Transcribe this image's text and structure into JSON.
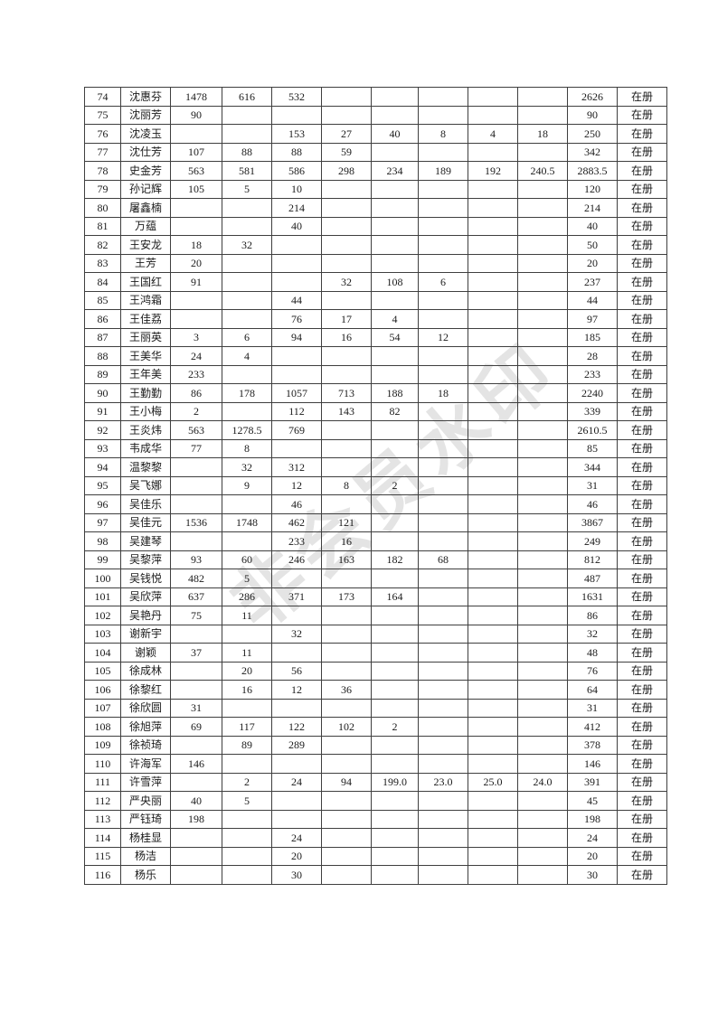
{
  "page": {
    "background_color": "#ffffff",
    "border_color": "#3f3f3f",
    "text_color": "#1b1b1b"
  },
  "watermark": {
    "text": "非会员水印",
    "color": "#e4e4e4",
    "rotation_deg": -40
  },
  "table": {
    "rows": [
      {
        "no": "74",
        "name": "沈惠芬",
        "values": [
          "1478",
          "616",
          "532",
          "",
          "",
          "",
          "",
          ""
        ],
        "total": "2626",
        "status": "在册"
      },
      {
        "no": "75",
        "name": "沈丽芳",
        "values": [
          "90",
          "",
          "",
          "",
          "",
          "",
          "",
          ""
        ],
        "total": "90",
        "status": "在册"
      },
      {
        "no": "76",
        "name": "沈凌玉",
        "values": [
          "",
          "",
          "153",
          "27",
          "40",
          "8",
          "4",
          "18"
        ],
        "total": "250",
        "status": "在册"
      },
      {
        "no": "77",
        "name": "沈仕芳",
        "values": [
          "107",
          "88",
          "88",
          "59",
          "",
          "",
          "",
          ""
        ],
        "total": "342",
        "status": "在册"
      },
      {
        "no": "78",
        "name": "史金芳",
        "values": [
          "563",
          "581",
          "586",
          "298",
          "234",
          "189",
          "192",
          "240.5"
        ],
        "total": "2883.5",
        "status": "在册"
      },
      {
        "no": "79",
        "name": "孙记辉",
        "values": [
          "105",
          "5",
          "10",
          "",
          "",
          "",
          "",
          ""
        ],
        "total": "120",
        "status": "在册"
      },
      {
        "no": "80",
        "name": "屠鑫楠",
        "values": [
          "",
          "",
          "214",
          "",
          "",
          "",
          "",
          ""
        ],
        "total": "214",
        "status": "在册"
      },
      {
        "no": "81",
        "name": "万蕴",
        "values": [
          "",
          "",
          "40",
          "",
          "",
          "",
          "",
          ""
        ],
        "total": "40",
        "status": "在册"
      },
      {
        "no": "82",
        "name": "王安龙",
        "values": [
          "18",
          "32",
          "",
          "",
          "",
          "",
          "",
          ""
        ],
        "total": "50",
        "status": "在册"
      },
      {
        "no": "83",
        "name": "王芳",
        "values": [
          "20",
          "",
          "",
          "",
          "",
          "",
          "",
          ""
        ],
        "total": "20",
        "status": "在册"
      },
      {
        "no": "84",
        "name": "王国红",
        "values": [
          "91",
          "",
          "",
          "32",
          "108",
          "6",
          "",
          ""
        ],
        "total": "237",
        "status": "在册"
      },
      {
        "no": "85",
        "name": "王鸿霜",
        "values": [
          "",
          "",
          "44",
          "",
          "",
          "",
          "",
          ""
        ],
        "total": "44",
        "status": "在册"
      },
      {
        "no": "86",
        "name": "王佳荔",
        "values": [
          "",
          "",
          "76",
          "17",
          "4",
          "",
          "",
          ""
        ],
        "total": "97",
        "status": "在册"
      },
      {
        "no": "87",
        "name": "王丽英",
        "values": [
          "3",
          "6",
          "94",
          "16",
          "54",
          "12",
          "",
          ""
        ],
        "total": "185",
        "status": "在册"
      },
      {
        "no": "88",
        "name": "王美华",
        "values": [
          "24",
          "4",
          "",
          "",
          "",
          "",
          "",
          ""
        ],
        "total": "28",
        "status": "在册"
      },
      {
        "no": "89",
        "name": "王年美",
        "values": [
          "233",
          "",
          "",
          "",
          "",
          "",
          "",
          ""
        ],
        "total": "233",
        "status": "在册"
      },
      {
        "no": "90",
        "name": "王勤勤",
        "values": [
          "86",
          "178",
          "1057",
          "713",
          "188",
          "18",
          "",
          ""
        ],
        "total": "2240",
        "status": "在册"
      },
      {
        "no": "91",
        "name": "王小梅",
        "values": [
          "2",
          "",
          "112",
          "143",
          "82",
          "",
          "",
          ""
        ],
        "total": "339",
        "status": "在册"
      },
      {
        "no": "92",
        "name": "王炎炜",
        "values": [
          "563",
          "1278.5",
          "769",
          "",
          "",
          "",
          "",
          ""
        ],
        "total": "2610.5",
        "status": "在册"
      },
      {
        "no": "93",
        "name": "韦成华",
        "values": [
          "77",
          "8",
          "",
          "",
          "",
          "",
          "",
          ""
        ],
        "total": "85",
        "status": "在册"
      },
      {
        "no": "94",
        "name": "温黎黎",
        "values": [
          "",
          "32",
          "312",
          "",
          "",
          "",
          "",
          ""
        ],
        "total": "344",
        "status": "在册"
      },
      {
        "no": "95",
        "name": "吴飞娜",
        "values": [
          "",
          "9",
          "12",
          "8",
          "2",
          "",
          "",
          ""
        ],
        "total": "31",
        "status": "在册"
      },
      {
        "no": "96",
        "name": "吴佳乐",
        "values": [
          "",
          "",
          "46",
          "",
          "",
          "",
          "",
          ""
        ],
        "total": "46",
        "status": "在册"
      },
      {
        "no": "97",
        "name": "吴佳元",
        "values": [
          "1536",
          "1748",
          "462",
          "121",
          "",
          "",
          "",
          ""
        ],
        "total": "3867",
        "status": "在册"
      },
      {
        "no": "98",
        "name": "吴建琴",
        "values": [
          "",
          "",
          "233",
          "16",
          "",
          "",
          "",
          ""
        ],
        "total": "249",
        "status": "在册"
      },
      {
        "no": "99",
        "name": "吴黎萍",
        "values": [
          "93",
          "60",
          "246",
          "163",
          "182",
          "68",
          "",
          ""
        ],
        "total": "812",
        "status": "在册"
      },
      {
        "no": "100",
        "name": "吴钱悦",
        "values": [
          "482",
          "5",
          "",
          "",
          "",
          "",
          "",
          ""
        ],
        "total": "487",
        "status": "在册"
      },
      {
        "no": "101",
        "name": "吴欣萍",
        "values": [
          "637",
          "286",
          "371",
          "173",
          "164",
          "",
          "",
          ""
        ],
        "total": "1631",
        "status": "在册"
      },
      {
        "no": "102",
        "name": "吴艳丹",
        "values": [
          "75",
          "11",
          "",
          "",
          "",
          "",
          "",
          ""
        ],
        "total": "86",
        "status": "在册"
      },
      {
        "no": "103",
        "name": "谢新宇",
        "values": [
          "",
          "",
          "32",
          "",
          "",
          "",
          "",
          ""
        ],
        "total": "32",
        "status": "在册"
      },
      {
        "no": "104",
        "name": "谢颖",
        "values": [
          "37",
          "11",
          "",
          "",
          "",
          "",
          "",
          ""
        ],
        "total": "48",
        "status": "在册"
      },
      {
        "no": "105",
        "name": "徐成林",
        "values": [
          "",
          "20",
          "56",
          "",
          "",
          "",
          "",
          ""
        ],
        "total": "76",
        "status": "在册"
      },
      {
        "no": "106",
        "name": "徐黎红",
        "values": [
          "",
          "16",
          "12",
          "36",
          "",
          "",
          "",
          ""
        ],
        "total": "64",
        "status": "在册"
      },
      {
        "no": "107",
        "name": "徐欣圆",
        "values": [
          "31",
          "",
          "",
          "",
          "",
          "",
          "",
          ""
        ],
        "total": "31",
        "status": "在册"
      },
      {
        "no": "108",
        "name": "徐旭萍",
        "values": [
          "69",
          "117",
          "122",
          "102",
          "2",
          "",
          "",
          ""
        ],
        "total": "412",
        "status": "在册"
      },
      {
        "no": "109",
        "name": "徐祯琦",
        "values": [
          "",
          "89",
          "289",
          "",
          "",
          "",
          "",
          ""
        ],
        "total": "378",
        "status": "在册"
      },
      {
        "no": "110",
        "name": "许海军",
        "values": [
          "146",
          "",
          "",
          "",
          "",
          "",
          "",
          ""
        ],
        "total": "146",
        "status": "在册"
      },
      {
        "no": "111",
        "name": "许雪萍",
        "values": [
          "",
          "2",
          "24",
          "94",
          "199.0",
          "23.0",
          "25.0",
          "24.0"
        ],
        "total": "391",
        "status": "在册"
      },
      {
        "no": "112",
        "name": "严央丽",
        "values": [
          "40",
          "5",
          "",
          "",
          "",
          "",
          "",
          ""
        ],
        "total": "45",
        "status": "在册"
      },
      {
        "no": "113",
        "name": "严钰琦",
        "values": [
          "198",
          "",
          "",
          "",
          "",
          "",
          "",
          ""
        ],
        "total": "198",
        "status": "在册"
      },
      {
        "no": "114",
        "name": "杨桂显",
        "values": [
          "",
          "",
          "24",
          "",
          "",
          "",
          "",
          ""
        ],
        "total": "24",
        "status": "在册"
      },
      {
        "no": "115",
        "name": "杨洁",
        "values": [
          "",
          "",
          "20",
          "",
          "",
          "",
          "",
          ""
        ],
        "total": "20",
        "status": "在册"
      },
      {
        "no": "116",
        "name": "杨乐",
        "values": [
          "",
          "",
          "30",
          "",
          "",
          "",
          "",
          ""
        ],
        "total": "30",
        "status": "在册"
      }
    ]
  }
}
